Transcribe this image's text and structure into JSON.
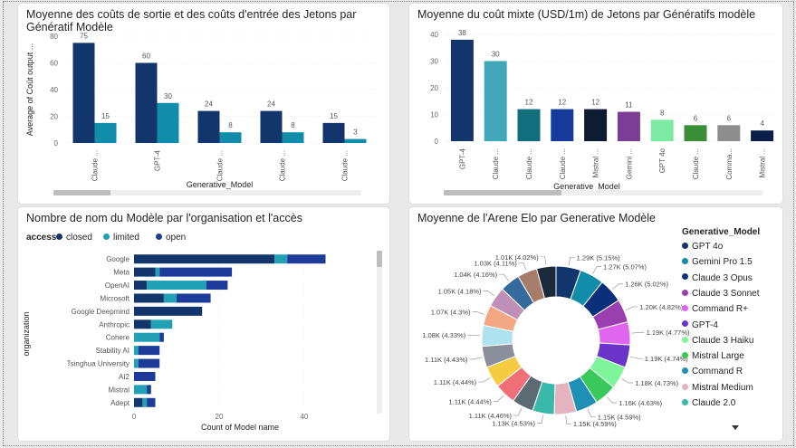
{
  "chart_data": [
    {
      "type": "bar",
      "title": "Moyenne des coûts de sortie et des coûts d'entrée des Jetons par Génératif Modèle",
      "xlabel": "Generative_Model",
      "ylabel": "Average of Coût output ...",
      "ylim": [
        0,
        80
      ],
      "yticks": [
        "0",
        "20",
        "40",
        "60",
        "80"
      ],
      "categories": [
        "Claude ...",
        "GPT-4",
        "Claude ...",
        "Claude ...",
        "Claude ..."
      ],
      "series": [
        {
          "values": [
            75,
            60,
            24,
            24,
            15
          ],
          "color": "#12356b"
        },
        {
          "values": [
            15,
            30,
            8,
            8,
            3
          ],
          "color": "#118dab"
        }
      ],
      "grid": true
    },
    {
      "type": "bar",
      "title": "Moyenne du coût mixte (USD/1m) de Jetons par Génératifs modèle",
      "xlabel": "Generative_Model",
      "ylim": [
        0,
        40
      ],
      "yticks": [
        "0",
        "10",
        "20",
        "30",
        "40"
      ],
      "categories": [
        "GPT-4",
        "Claude ...",
        "Claude ...",
        "Claude ...",
        "Mistral ...",
        "Gemini ...",
        "GPT 4o",
        "Claude ...",
        "Comma...",
        "Mistral ..."
      ],
      "values": [
        38,
        30,
        12,
        12,
        12,
        11,
        8,
        6,
        6,
        4
      ],
      "colors": [
        "#12356b",
        "#43a7bb",
        "#136e7c",
        "#173b9c",
        "#0d1b33",
        "#7b3d96",
        "#7deaa4",
        "#3c8f3a",
        "#8e8e8e",
        "#0a1e4a"
      ],
      "grid": true
    },
    {
      "type": "bar",
      "orientation": "horizontal",
      "stacked": true,
      "title": "Nombre de nom du Modèle par l'organisation et l'accès",
      "legend_title": "access",
      "legend_position": "top-left",
      "xlabel": "Count of Model name",
      "ylabel": "organization",
      "xlim": [
        0,
        50
      ],
      "xticks": [
        "0",
        "20",
        "40"
      ],
      "categories": [
        "Google",
        "Meta",
        "OpenAI",
        "Microsoft",
        "Google Deepmind",
        "Anthropic",
        "Cohere",
        "Stability AI",
        "Tsinghua University",
        "AI2",
        "Mistral",
        "Adept"
      ],
      "series": [
        {
          "name": "closed",
          "color": "#12356b",
          "values": [
            33,
            5,
            3,
            7,
            16,
            4,
            0,
            0,
            0,
            0,
            0,
            2
          ]
        },
        {
          "name": "limited",
          "color": "#22a0b5",
          "values": [
            3,
            1,
            14,
            3,
            0,
            5,
            6,
            1,
            1,
            0,
            3,
            1
          ]
        },
        {
          "name": "open",
          "color": "#1d3c9a",
          "values": [
            9,
            17,
            5,
            8,
            0,
            0,
            1,
            5,
            5,
            5,
            1,
            2
          ]
        }
      ],
      "grid": true
    },
    {
      "type": "pie",
      "donut": true,
      "title": "Moyenne de l'Arene Elo par Generative Modèle",
      "legend_title": "Generative_Model",
      "legend_position": "right",
      "legend": [
        "GPT 4o",
        "Gemini Pro 1.5",
        "Claude 3 Opus",
        "Claude 3 Sonnet",
        "Command R+",
        "GPT-4",
        "Claude 3 Haiku",
        "Mistral Large",
        "Command R",
        "Mistral Medium",
        "Claude 2.0"
      ],
      "labels": [
        "1.29K (5.15%)",
        "1.27K (5.07%)",
        "1.26K (5.02%)",
        "1.20K (4.82%)",
        "1.19K (4.77%)",
        "1.19K (4.74%)",
        "1.18K (4.73%)",
        "1.16K (4.63%)",
        "1.15K (4.59%)",
        "1.15K (4.59%)",
        "1.13K (4.53%)",
        "1.11K (4.46%)",
        "1.11K (4.44%)",
        "1.11K (4.44%)",
        "1.11K (4.43%)",
        "1.08K (4.33%)",
        "1.07K (4.3%)",
        "1.05K (4.18%)",
        "1.04K (4.16%)",
        "1.03K (4.11%)",
        "1.01K (4.02%)"
      ],
      "values": [
        5.15,
        5.07,
        5.02,
        4.82,
        4.77,
        4.74,
        4.73,
        4.63,
        4.59,
        4.59,
        4.53,
        4.46,
        4.44,
        4.44,
        4.43,
        4.33,
        4.3,
        4.18,
        4.16,
        4.11,
        4.02
      ],
      "colors": [
        "#12356b",
        "#118dab",
        "#0a2f7a",
        "#9b3fb0",
        "#e066ef",
        "#6b34c9",
        "#7ef59a",
        "#39c85a",
        "#1f8fb3",
        "#e4b3bf",
        "#3ab8a9",
        "#5c6a73",
        "#f0707a",
        "#f5cb42",
        "#8b8f9b",
        "#aee2ee",
        "#f3a882",
        "#c08fb8",
        "#346b9c",
        "#a77c6b",
        "#1b2a3a"
      ]
    }
  ]
}
